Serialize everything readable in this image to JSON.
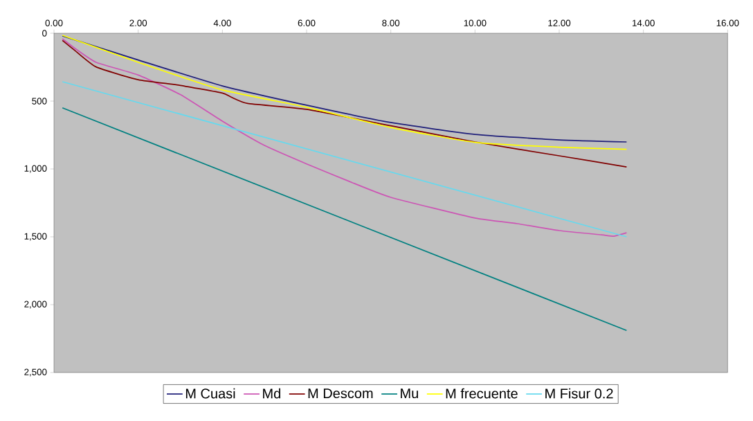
{
  "chart_data": {
    "type": "line",
    "xlim": [
      0,
      16
    ],
    "ylim": [
      2500,
      0
    ],
    "xticks": [
      {
        "value": 0,
        "label": "0.00"
      },
      {
        "value": 2,
        "label": "2.00"
      },
      {
        "value": 4,
        "label": "4.00"
      },
      {
        "value": 6,
        "label": "6.00"
      },
      {
        "value": 8,
        "label": "8.00"
      },
      {
        "value": 10,
        "label": "10.00"
      },
      {
        "value": 12,
        "label": "12.00"
      },
      {
        "value": 14,
        "label": "14.00"
      },
      {
        "value": 16,
        "label": "16.00"
      }
    ],
    "yticks": [
      0,
      500,
      {
        "value": 1000,
        "label": "1,000"
      },
      {
        "value": 1500,
        "label": "1,500"
      },
      {
        "value": 2000,
        "label": "2,000"
      },
      {
        "value": 2500,
        "label": "2,500"
      }
    ],
    "grid": false,
    "legend": "bottom",
    "marker": "none",
    "line_style": "solid",
    "series": [
      {
        "name": "M Cuasi",
        "color": "#1f1f7a",
        "x": [
          0.2,
          2,
          4,
          6,
          8,
          10,
          12,
          13.6
        ],
        "values": [
          20,
          197,
          388,
          530,
          658,
          745,
          786,
          801
        ]
      },
      {
        "name": "Md",
        "color": "#cc55b4",
        "x": [
          0.2,
          0.5,
          1,
          2,
          3,
          4,
          5,
          6,
          7,
          8,
          10,
          11,
          12,
          13,
          13.3,
          13.6
        ],
        "values": [
          41,
          112,
          214,
          308,
          452,
          648,
          827,
          963,
          1090,
          1209,
          1362,
          1403,
          1454,
          1485,
          1495,
          1470
        ]
      },
      {
        "name": "M Descom",
        "color": "#800000",
        "x": [
          0.2,
          0.5,
          1,
          2,
          3,
          4,
          4.2,
          4.6,
          6,
          8,
          10,
          12,
          13.6
        ],
        "values": [
          53,
          128,
          248,
          342,
          384,
          441,
          469,
          517,
          561,
          682,
          801,
          903,
          985
        ]
      },
      {
        "name": "Mu",
        "color": "#008080",
        "x": [
          0.2,
          13.6
        ],
        "values": [
          550,
          2190
        ]
      },
      {
        "name": "M frecuente",
        "color": "#ffff00",
        "x": [
          0.2,
          2,
          4,
          6,
          8,
          10,
          12,
          13.6
        ],
        "values": [
          15,
          214,
          418,
          545,
          694,
          804,
          840,
          855
        ]
      },
      {
        "name": "M Fisur 0.2",
        "color": "#66d9ee",
        "x": [
          0.2,
          13.6
        ],
        "values": [
          357,
          1500
        ]
      }
    ]
  }
}
